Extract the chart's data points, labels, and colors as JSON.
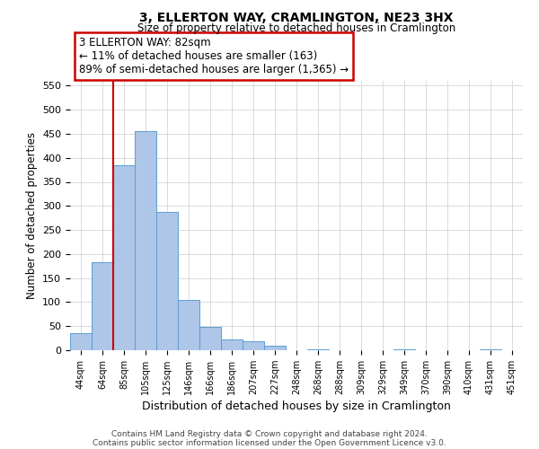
{
  "title": "3, ELLERTON WAY, CRAMLINGTON, NE23 3HX",
  "subtitle": "Size of property relative to detached houses in Cramlington",
  "xlabel": "Distribution of detached houses by size in Cramlington",
  "ylabel": "Number of detached properties",
  "bar_labels": [
    "44sqm",
    "64sqm",
    "85sqm",
    "105sqm",
    "125sqm",
    "146sqm",
    "166sqm",
    "186sqm",
    "207sqm",
    "227sqm",
    "248sqm",
    "268sqm",
    "288sqm",
    "309sqm",
    "329sqm",
    "349sqm",
    "370sqm",
    "390sqm",
    "410sqm",
    "431sqm",
    "451sqm"
  ],
  "bar_values": [
    35,
    183,
    385,
    455,
    288,
    105,
    48,
    23,
    18,
    10,
    0,
    1,
    0,
    0,
    0,
    1,
    0,
    0,
    0,
    1,
    0
  ],
  "bar_color": "#aec6e8",
  "bar_edge_color": "#5a9fd4",
  "vline_color": "#cc0000",
  "ylim": [
    0,
    560
  ],
  "yticks": [
    0,
    50,
    100,
    150,
    200,
    250,
    300,
    350,
    400,
    450,
    500,
    550
  ],
  "annotation_title": "3 ELLERTON WAY: 82sqm",
  "annotation_line1": "← 11% of detached houses are smaller (163)",
  "annotation_line2": "89% of semi-detached houses are larger (1,365) →",
  "annotation_box_color": "#cc0000",
  "footer_line1": "Contains HM Land Registry data © Crown copyright and database right 2024.",
  "footer_line2": "Contains public sector information licensed under the Open Government Licence v3.0.",
  "background_color": "#ffffff",
  "grid_color": "#cccccc"
}
